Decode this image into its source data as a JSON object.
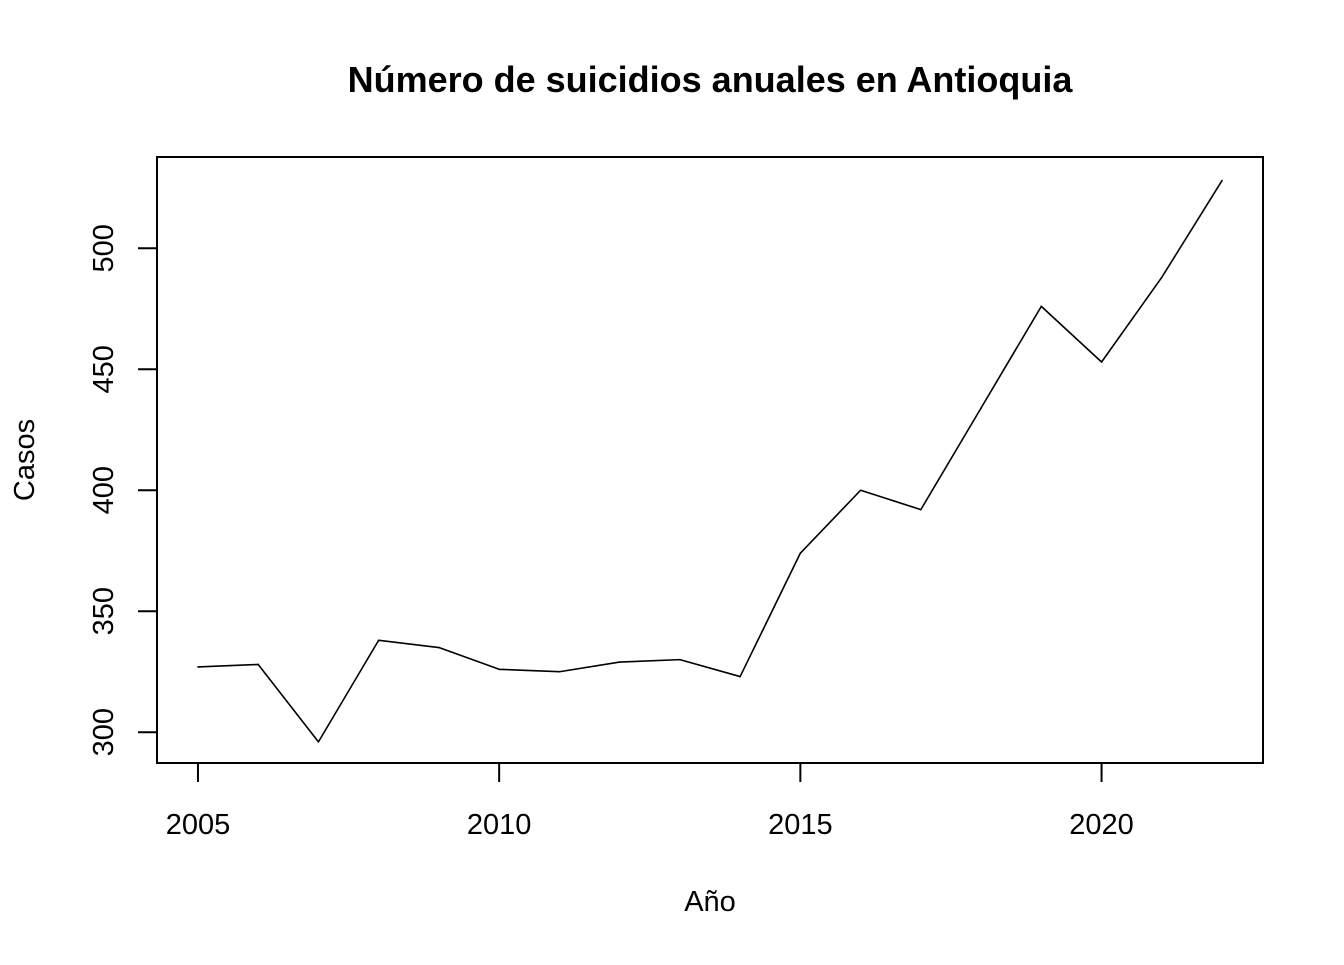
{
  "chart_data": {
    "type": "line",
    "title": "Número de suicidios anuales en Antioquia",
    "xlabel": "Año",
    "ylabel": "Casos",
    "x": [
      2005,
      2006,
      2007,
      2008,
      2009,
      2010,
      2011,
      2012,
      2013,
      2014,
      2015,
      2016,
      2017,
      2018,
      2019,
      2020,
      2021,
      2022
    ],
    "series": [
      {
        "values": [
          327,
          328,
          296,
          338,
          335,
          326,
          325,
          329,
          330,
          323,
          374,
          400,
          392,
          434,
          476,
          453,
          488,
          528
        ],
        "color": "#000000"
      }
    ],
    "xlim": [
      2004.32,
      2022.68
    ],
    "ylim": [
      287.28,
      537.72
    ],
    "xticks": [
      "2005",
      "2010",
      "2015",
      "2020"
    ],
    "yticks": [
      "300",
      "350",
      "400",
      "450",
      "500"
    ],
    "grid": false,
    "legend": "none"
  }
}
